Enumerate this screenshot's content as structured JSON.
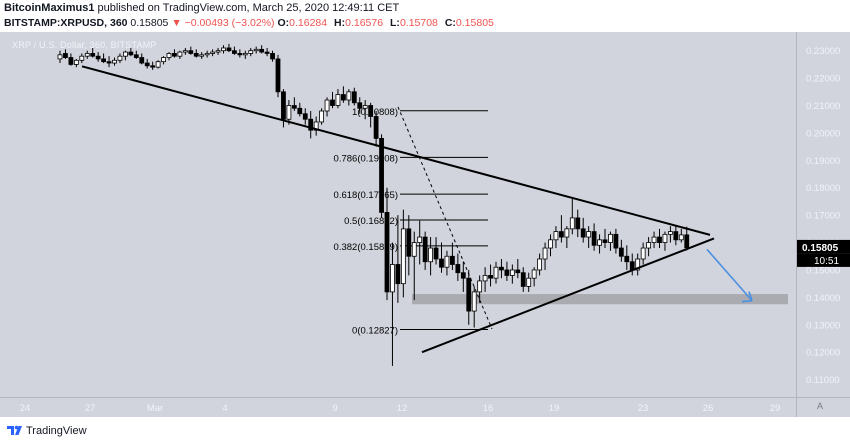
{
  "header": {
    "author": "BitcoinMaximus1",
    "published_text": "published on TradingView.com, March 25, 2020 12:49:11 CET",
    "symbol": "BITSTAMP:XRPUSD, 360",
    "last": "0.15805",
    "change": "−0.00493 (−3.02%)",
    "o_label": "O:",
    "o_value": "0.16284",
    "h_label": "H:",
    "h_value": "0.16576",
    "l_label": "L:",
    "l_value": "0.15708",
    "c_label": "C:",
    "c_value": "0.15805"
  },
  "watermark": "XRP / U.S. Dollar, 360, BITSTAMP",
  "corner_label": "A",
  "footer": {
    "brand": "TradingView"
  },
  "colors": {
    "background": "#d1d4dc",
    "candle": "#000000",
    "trend_line": "#000000",
    "arrow": "#4a90e2",
    "support_zone": "#9c9da1",
    "price_tag": "#000000"
  },
  "chart_data": {
    "type": "candlestick",
    "title": "XRP / U.S. Dollar, 360, BITSTAMP",
    "price_axis": {
      "ylim": [
        0.1,
        0.235
      ],
      "ticks": [
        "0.23000",
        "0.22000",
        "0.21000",
        "0.20000",
        "0.19000",
        "0.18000",
        "0.17000",
        "0.16000",
        "0.15000",
        "0.14000",
        "0.13000",
        "0.12000",
        "0.11000"
      ],
      "last_price_tag": "0.15805",
      "countdown_tag": "10:51"
    },
    "time_axis": {
      "ticks": [
        "24",
        "27",
        "Mar",
        "4",
        "9",
        "12",
        "16",
        "19",
        "23",
        "26",
        "29"
      ]
    },
    "fibonacci": [
      {
        "label": "1(0.20808)",
        "price": 0.20808
      },
      {
        "label": "0.786(0.19108)",
        "price": 0.19108
      },
      {
        "label": "0.618(0.17765)",
        "price": 0.17765
      },
      {
        "label": "0.5(0.16822)",
        "price": 0.16822
      },
      {
        "label": "0.382(0.15879)",
        "price": 0.15879
      },
      {
        "label": "0(0.12827)",
        "price": 0.12827
      }
    ],
    "support_zone": [
      0.1375,
      0.1412
    ],
    "candles": [
      [
        0.227,
        0.23,
        0.2255,
        0.2285
      ],
      [
        0.229,
        0.2305,
        0.227,
        0.2275
      ],
      [
        0.2275,
        0.229,
        0.2245,
        0.225
      ],
      [
        0.225,
        0.227,
        0.224,
        0.2265
      ],
      [
        0.2265,
        0.229,
        0.2255,
        0.228
      ],
      [
        0.228,
        0.23,
        0.227,
        0.229
      ],
      [
        0.229,
        0.231,
        0.2275,
        0.228
      ],
      [
        0.228,
        0.2295,
        0.226,
        0.227
      ],
      [
        0.227,
        0.229,
        0.2255,
        0.226
      ],
      [
        0.226,
        0.228,
        0.224,
        0.2255
      ],
      [
        0.2255,
        0.2275,
        0.2245,
        0.2265
      ],
      [
        0.2265,
        0.229,
        0.2255,
        0.228
      ],
      [
        0.228,
        0.23,
        0.2265,
        0.2295
      ],
      [
        0.2295,
        0.231,
        0.228,
        0.2285
      ],
      [
        0.2285,
        0.23,
        0.227,
        0.2275
      ],
      [
        0.2275,
        0.229,
        0.225,
        0.2255
      ],
      [
        0.2255,
        0.227,
        0.2235,
        0.2245
      ],
      [
        0.2245,
        0.226,
        0.223,
        0.224
      ],
      [
        0.224,
        0.2265,
        0.2235,
        0.226
      ],
      [
        0.226,
        0.228,
        0.225,
        0.2275
      ],
      [
        0.2275,
        0.2295,
        0.2265,
        0.229
      ],
      [
        0.229,
        0.2305,
        0.2275,
        0.228
      ],
      [
        0.228,
        0.23,
        0.227,
        0.2295
      ],
      [
        0.2295,
        0.231,
        0.2285,
        0.23
      ],
      [
        0.23,
        0.2315,
        0.2285,
        0.229
      ],
      [
        0.229,
        0.2305,
        0.2275,
        0.228
      ],
      [
        0.228,
        0.2295,
        0.227,
        0.2285
      ],
      [
        0.2285,
        0.23,
        0.2275,
        0.229
      ],
      [
        0.229,
        0.2305,
        0.228,
        0.2295
      ],
      [
        0.2295,
        0.231,
        0.2285,
        0.23
      ],
      [
        0.23,
        0.232,
        0.229,
        0.231
      ],
      [
        0.231,
        0.2325,
        0.2295,
        0.23
      ],
      [
        0.23,
        0.2315,
        0.2285,
        0.229
      ],
      [
        0.229,
        0.2305,
        0.2275,
        0.2285
      ],
      [
        0.2285,
        0.23,
        0.227,
        0.229
      ],
      [
        0.229,
        0.231,
        0.228,
        0.23
      ],
      [
        0.23,
        0.2315,
        0.229,
        0.2305
      ],
      [
        0.2305,
        0.232,
        0.229,
        0.2295
      ],
      [
        0.2295,
        0.231,
        0.228,
        0.229
      ],
      [
        0.229,
        0.23,
        0.226,
        0.227
      ],
      [
        0.227,
        0.2285,
        0.213,
        0.215
      ],
      [
        0.215,
        0.216,
        0.202,
        0.205
      ],
      [
        0.205,
        0.212,
        0.203,
        0.21
      ],
      [
        0.21,
        0.213,
        0.208,
        0.209
      ],
      [
        0.209,
        0.211,
        0.206,
        0.207
      ],
      [
        0.207,
        0.209,
        0.203,
        0.205
      ],
      [
        0.205,
        0.208,
        0.198,
        0.201
      ],
      [
        0.201,
        0.206,
        0.199,
        0.204
      ],
      [
        0.204,
        0.209,
        0.203,
        0.208
      ],
      [
        0.208,
        0.213,
        0.206,
        0.212
      ],
      [
        0.212,
        0.215,
        0.209,
        0.21
      ],
      [
        0.21,
        0.216,
        0.209,
        0.214
      ],
      [
        0.214,
        0.217,
        0.211,
        0.212
      ],
      [
        0.212,
        0.216,
        0.21,
        0.215
      ],
      [
        0.215,
        0.2165,
        0.21,
        0.211
      ],
      [
        0.211,
        0.213,
        0.207,
        0.209
      ],
      [
        0.209,
        0.212,
        0.205,
        0.21
      ],
      [
        0.21,
        0.211,
        0.202,
        0.206
      ],
      [
        0.206,
        0.208,
        0.195,
        0.198
      ],
      [
        0.198,
        0.1995,
        0.169,
        0.171
      ],
      [
        0.171,
        0.18,
        0.139,
        0.142
      ],
      [
        0.142,
        0.16,
        0.115,
        0.152
      ],
      [
        0.152,
        0.17,
        0.138,
        0.145
      ],
      [
        0.145,
        0.172,
        0.14,
        0.165
      ],
      [
        0.165,
        0.17,
        0.148,
        0.155
      ],
      [
        0.155,
        0.164,
        0.139,
        0.16
      ],
      [
        0.16,
        0.168,
        0.152,
        0.162
      ],
      [
        0.162,
        0.164,
        0.15,
        0.153
      ],
      [
        0.153,
        0.162,
        0.148,
        0.158
      ],
      [
        0.158,
        0.162,
        0.152,
        0.154
      ],
      [
        0.154,
        0.16,
        0.149,
        0.151
      ],
      [
        0.151,
        0.157,
        0.148,
        0.155
      ],
      [
        0.155,
        0.16,
        0.15,
        0.152
      ],
      [
        0.152,
        0.156,
        0.146,
        0.149
      ],
      [
        0.149,
        0.153,
        0.142,
        0.147
      ],
      [
        0.147,
        0.15,
        0.13,
        0.135
      ],
      [
        0.135,
        0.144,
        0.129,
        0.142
      ],
      [
        0.142,
        0.148,
        0.138,
        0.146
      ],
      [
        0.146,
        0.151,
        0.142,
        0.148
      ],
      [
        0.148,
        0.152,
        0.144,
        0.147
      ],
      [
        0.147,
        0.153,
        0.145,
        0.151
      ],
      [
        0.151,
        0.154,
        0.147,
        0.15
      ],
      [
        0.15,
        0.153,
        0.146,
        0.148
      ],
      [
        0.148,
        0.152,
        0.145,
        0.15
      ],
      [
        0.15,
        0.154,
        0.147,
        0.149
      ],
      [
        0.149,
        0.151,
        0.142,
        0.144
      ],
      [
        0.144,
        0.149,
        0.142,
        0.147
      ],
      [
        0.147,
        0.151,
        0.144,
        0.15
      ],
      [
        0.15,
        0.156,
        0.148,
        0.154
      ],
      [
        0.154,
        0.16,
        0.15,
        0.158
      ],
      [
        0.158,
        0.163,
        0.155,
        0.161
      ],
      [
        0.161,
        0.166,
        0.158,
        0.164
      ],
      [
        0.164,
        0.17,
        0.16,
        0.162
      ],
      [
        0.162,
        0.166,
        0.158,
        0.165
      ],
      [
        0.165,
        0.176,
        0.163,
        0.169
      ],
      [
        0.169,
        0.172,
        0.162,
        0.165
      ],
      [
        0.165,
        0.169,
        0.16,
        0.162
      ],
      [
        0.162,
        0.166,
        0.158,
        0.164
      ],
      [
        0.164,
        0.167,
        0.157,
        0.159
      ],
      [
        0.159,
        0.163,
        0.156,
        0.161
      ],
      [
        0.161,
        0.165,
        0.158,
        0.16
      ],
      [
        0.16,
        0.164,
        0.157,
        0.163
      ],
      [
        0.163,
        0.165,
        0.156,
        0.158
      ],
      [
        0.158,
        0.161,
        0.153,
        0.155
      ],
      [
        0.155,
        0.159,
        0.15,
        0.153
      ],
      [
        0.153,
        0.156,
        0.148,
        0.15
      ],
      [
        0.15,
        0.156,
        0.148,
        0.154
      ],
      [
        0.154,
        0.16,
        0.152,
        0.158
      ],
      [
        0.158,
        0.162,
        0.155,
        0.16
      ],
      [
        0.16,
        0.164,
        0.158,
        0.162
      ],
      [
        0.162,
        0.165,
        0.158,
        0.16
      ],
      [
        0.16,
        0.164,
        0.157,
        0.163
      ],
      [
        0.163,
        0.166,
        0.16,
        0.164
      ],
      [
        0.164,
        0.166,
        0.159,
        0.161
      ],
      [
        0.161,
        0.165,
        0.16,
        0.1628
      ],
      [
        0.1628,
        0.1658,
        0.1571,
        0.1581
      ]
    ]
  }
}
